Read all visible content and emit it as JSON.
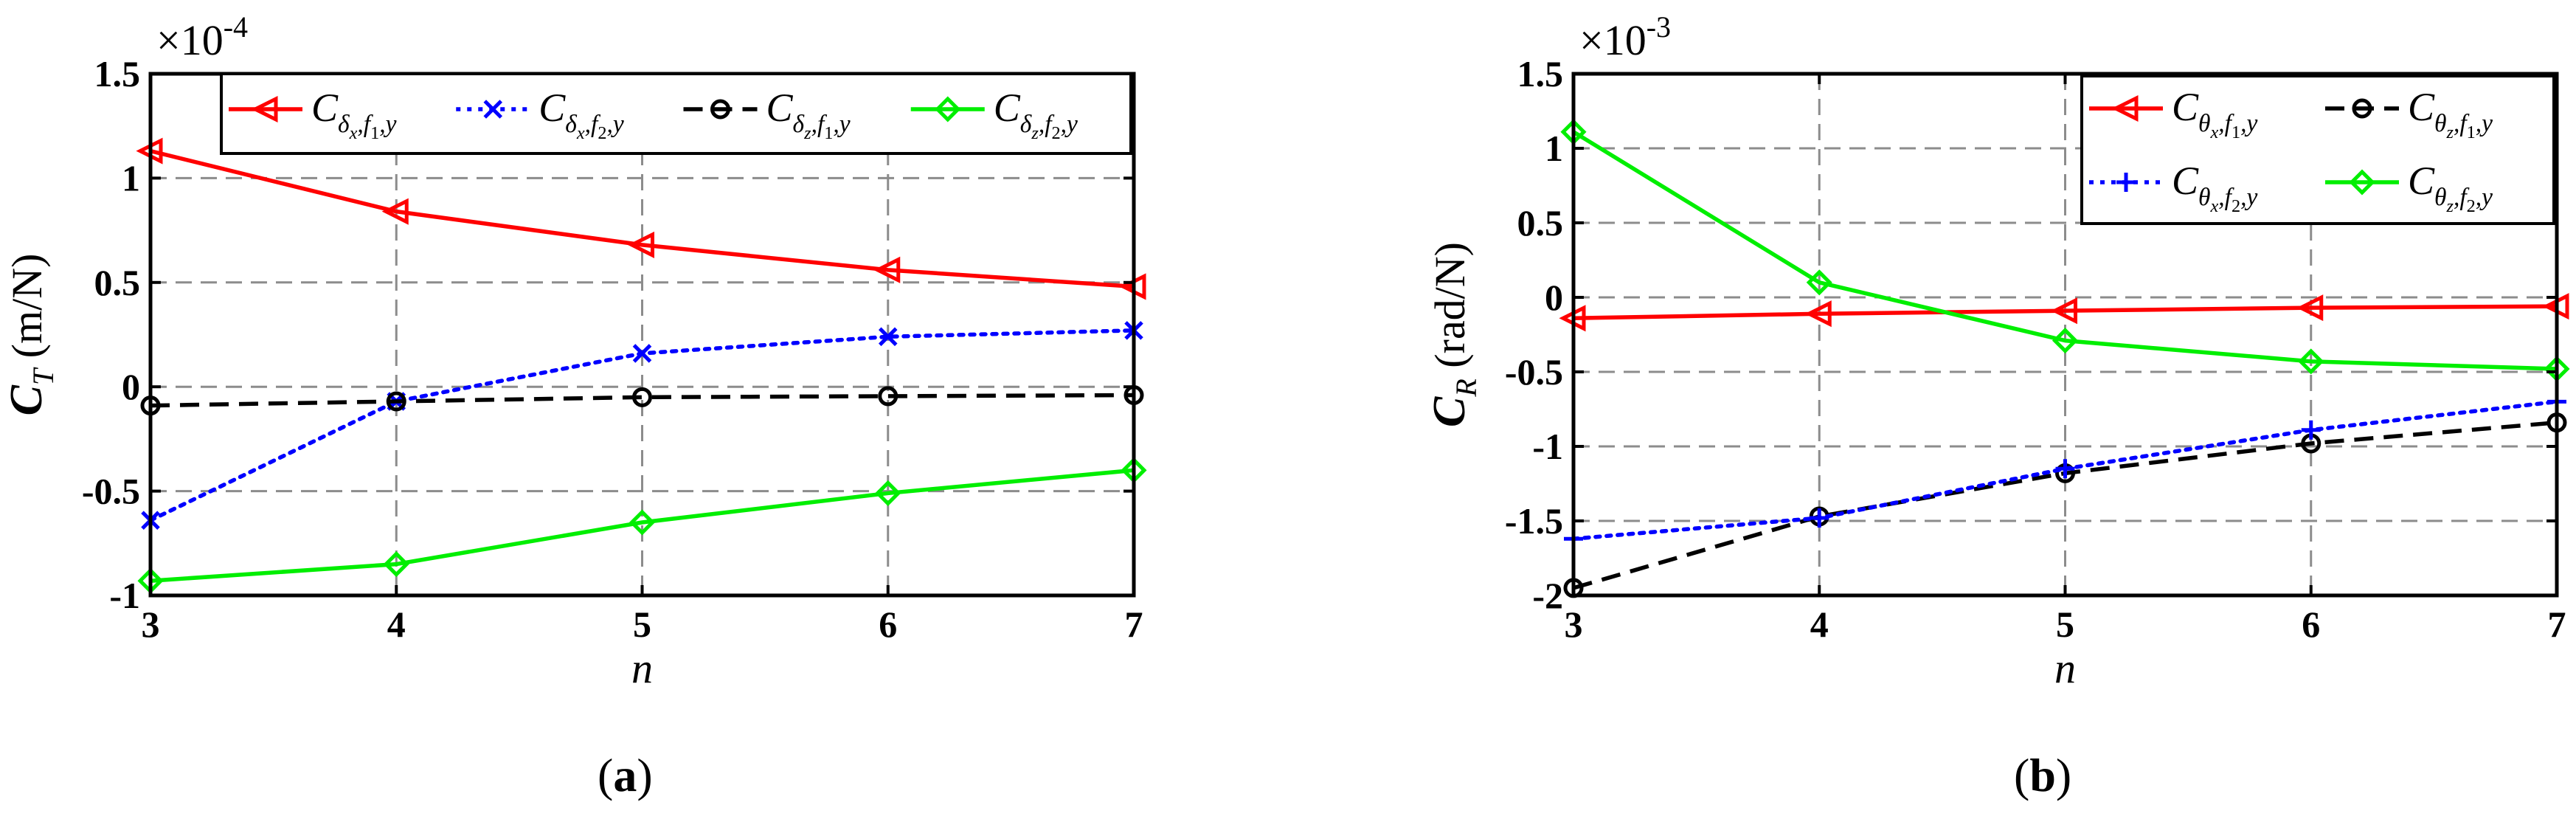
{
  "chart_data": [
    {
      "type": "line",
      "panel_label": "a",
      "xlabel": "n",
      "ylabel": {
        "main": "C",
        "sub": "T",
        "unit": "(m/N)"
      },
      "exponent": {
        "base": "×10",
        "power": "-4"
      },
      "x": [
        3,
        4,
        5,
        6,
        7
      ],
      "xlim": [
        3,
        7
      ],
      "ylim": [
        -1,
        1.5
      ],
      "xticks": [
        "3",
        "4",
        "5",
        "6",
        "7"
      ],
      "yticks": [
        "-1",
        "-0.5",
        "0",
        "0.5",
        "1",
        "1.5"
      ],
      "ytick_values": [
        -1,
        -0.5,
        0,
        0.5,
        1,
        1.5
      ],
      "grid": true,
      "legend": {
        "position": "top-right",
        "columns": 4
      },
      "series": [
        {
          "name": "C_{δx,f1,y}",
          "main": "C",
          "sub": "δ",
          "subsub": "x",
          "sub2": "f",
          "sub2sub": "1",
          "sub3": "y",
          "color": "#ff0000",
          "marker": "triangle-left",
          "dash": "solid",
          "values": [
            1.13,
            0.84,
            0.68,
            0.56,
            0.48
          ]
        },
        {
          "name": "C_{δx,f2,y}",
          "main": "C",
          "sub": "δ",
          "subsub": "x",
          "sub2": "f",
          "sub2sub": "2",
          "sub3": "y",
          "color": "#0000ff",
          "marker": "x",
          "dash": "dotted",
          "values": [
            -0.64,
            -0.07,
            0.16,
            0.24,
            0.27
          ]
        },
        {
          "name": "C_{δz,f1,y}",
          "main": "C",
          "sub": "δ",
          "subsub": "z",
          "sub2": "f",
          "sub2sub": "1",
          "sub3": "y",
          "color": "#000000",
          "marker": "circle",
          "dash": "dashed",
          "values": [
            -0.09,
            -0.07,
            -0.05,
            -0.045,
            -0.04
          ]
        },
        {
          "name": "C_{δz,f2,y}",
          "main": "C",
          "sub": "δ",
          "subsub": "z",
          "sub2": "f",
          "sub2sub": "2",
          "sub3": "y",
          "color": "#00ee00",
          "marker": "diamond",
          "dash": "solid",
          "values": [
            -0.93,
            -0.85,
            -0.65,
            -0.51,
            -0.4
          ]
        }
      ]
    },
    {
      "type": "line",
      "panel_label": "b",
      "xlabel": "n",
      "ylabel": {
        "main": "C",
        "sub": "R",
        "unit": "(rad/N)"
      },
      "exponent": {
        "base": "×10",
        "power": "-3"
      },
      "x": [
        3,
        4,
        5,
        6,
        7
      ],
      "xlim": [
        3,
        7
      ],
      "ylim": [
        -2,
        1.5
      ],
      "xticks": [
        "3",
        "4",
        "5",
        "6",
        "7"
      ],
      "yticks": [
        "-2",
        "-1.5",
        "-1",
        "-0.5",
        "0",
        "0.5",
        "1",
        "1.5"
      ],
      "ytick_values": [
        -2,
        -1.5,
        -1,
        -0.5,
        0,
        0.5,
        1,
        1.5
      ],
      "grid": true,
      "legend": {
        "position": "top-right",
        "columns": 2
      },
      "series": [
        {
          "name": "C_{θx,f1,y}",
          "main": "C",
          "sub": "θ",
          "subsub": "x",
          "sub2": "f",
          "sub2sub": "1",
          "sub3": "y",
          "color": "#ff0000",
          "marker": "triangle-left",
          "dash": "solid",
          "values": [
            -0.14,
            -0.11,
            -0.09,
            -0.07,
            -0.06
          ]
        },
        {
          "name": "C_{θz,f1,y}",
          "main": "C",
          "sub": "θ",
          "subsub": "z",
          "sub2": "f",
          "sub2sub": "1",
          "sub3": "y",
          "color": "#000000",
          "marker": "circle",
          "dash": "dashed",
          "values": [
            -1.95,
            -1.47,
            -1.18,
            -0.98,
            -0.84
          ]
        },
        {
          "name": "C_{θx,f2,y}",
          "main": "C",
          "sub": "θ",
          "subsub": "x",
          "sub2": "f",
          "sub2sub": "2",
          "sub3": "y",
          "color": "#0000ff",
          "marker": "plus",
          "dash": "dotted",
          "values": [
            -1.62,
            -1.48,
            -1.15,
            -0.89,
            -0.7
          ]
        },
        {
          "name": "C_{θz,f2,y}",
          "main": "C",
          "sub": "θ",
          "subsub": "z",
          "sub2": "f",
          "sub2sub": "2",
          "sub3": "y",
          "color": "#00ee00",
          "marker": "diamond",
          "dash": "solid",
          "values": [
            1.11,
            0.1,
            -0.29,
            -0.43,
            -0.48
          ]
        }
      ]
    }
  ]
}
